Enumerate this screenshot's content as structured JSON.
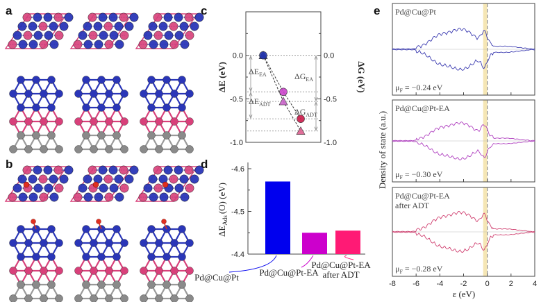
{
  "panels": {
    "a": "a",
    "b": "b",
    "c": "c",
    "d": "d",
    "e": "e"
  },
  "colors": {
    "pd_blue": "#2a36b8",
    "pt_pink": "#d8407a",
    "cu_gray": "#8a8a8a",
    "o_red": "#e03020",
    "dos_blue": "#3a3ab0",
    "dos_purple": "#b040c0",
    "dos_pink": "#d04070",
    "fermi_band": "#f5e6b5"
  },
  "panel_c": {
    "left_axis_label": "ΔE (eV)",
    "right_axis_label": "ΔG (eV)",
    "left_ticks": [
      "0.0",
      "-0.5",
      "-1.0"
    ],
    "right_ticks": [
      "0.0",
      "-0.5",
      "-1.0"
    ],
    "annotations": {
      "de_ea": "ΔE",
      "de_ea_sub": "EA",
      "de_adt": "ΔE",
      "de_adt_sub": "ADT",
      "dg_ea": "ΔG",
      "dg_ea_sub": "EA",
      "dg_adt": "ΔG",
      "dg_adt_sub": "ADT"
    }
  },
  "panel_e": {
    "subpanels": [
      {
        "label": "Pd@Cu@Pt",
        "label2": "",
        "mu": "μ",
        "mu_sub": "F",
        "mu_val": " = −0.24 eV"
      },
      {
        "label": "Pd@Cu@Pt-EA",
        "label2": "",
        "mu": "μ",
        "mu_sub": "F",
        "mu_val": " = −0.30 eV"
      },
      {
        "label": "Pd@Cu@Pt-EA",
        "label2": "after ADT",
        "mu": "μ",
        "mu_sub": "F",
        "mu_val": " = −0.28 eV"
      }
    ],
    "ylabel": "Density of state (a.u.)",
    "xlabel": "ε (eV)",
    "xticks": [
      "-8",
      "-6",
      "-4",
      "-2",
      "0",
      "2",
      "4"
    ]
  },
  "chart_data": [
    {
      "type": "scatter",
      "panel": "c",
      "ylabel": "ΔE (eV)",
      "y2label": "ΔG (eV)",
      "ylim": [
        -1.0,
        0.5
      ],
      "series": [
        {
          "marker": "circle",
          "values": [
            0.0,
            -0.42,
            -0.73
          ]
        },
        {
          "marker": "triangle",
          "values": [
            0.0,
            -0.53,
            -0.87
          ]
        }
      ]
    },
    {
      "type": "bar",
      "panel": "d",
      "categories": [
        "Pd@Cu@Pt",
        "Pd@Cu@Pt-EA",
        "Pd@Cu@Pt-EA after ADT"
      ],
      "category_lines": [
        [
          "Pd@Cu@Pt"
        ],
        [
          "Pd@Cu@Pt-EA"
        ],
        [
          "Pd@Cu@Pt-EA",
          "after ADT"
        ]
      ],
      "values": [
        -4.57,
        -4.45,
        -4.455
      ],
      "colors": [
        "#0000ee",
        "#cc00cc",
        "#ff1a75"
      ],
      "ylabel": "ΔE",
      "ylabel_sub": "Ads",
      "ylabel_suffix": "(O) (eV)",
      "ylim": [
        -4.4,
        -4.6
      ],
      "yticks": [
        "-4.6",
        "-4.5",
        "-4.4"
      ]
    },
    {
      "type": "line",
      "panel": "e",
      "xlabel": "ε (eV)",
      "ylabel": "Density of state (a.u.)",
      "xlim": [
        -8,
        4
      ],
      "fermi_level": 0,
      "series": [
        {
          "name": "Pd@Cu@Pt"
        },
        {
          "name": "Pd@Cu@Pt-EA"
        },
        {
          "name": "Pd@Cu@Pt-EA after ADT"
        }
      ]
    }
  ]
}
